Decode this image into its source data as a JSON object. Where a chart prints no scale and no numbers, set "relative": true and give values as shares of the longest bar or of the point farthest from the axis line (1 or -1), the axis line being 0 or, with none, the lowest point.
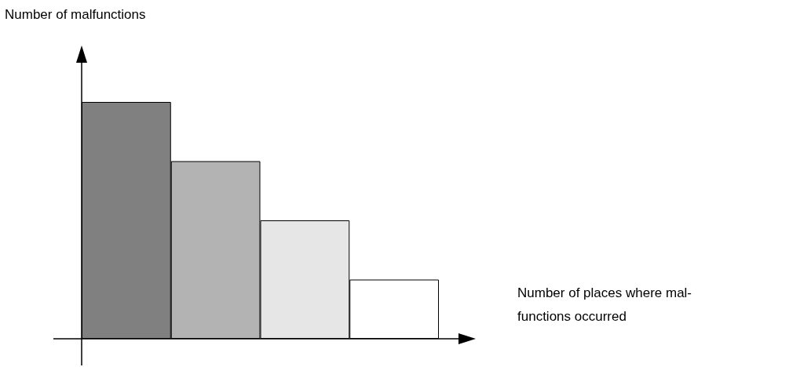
{
  "chart_data": {
    "type": "bar",
    "relative": true,
    "annotations": [
      "Number of malfunctions"
    ],
    "xlabel": "Number of places where mal-\nfunctions occurred",
    "categories": [
      null,
      null,
      null,
      null
    ],
    "values": [
      1,
      0.75,
      0.5,
      0.25
    ],
    "colors": [
      "#808080",
      "#b3b3b3",
      "#e6e6e6",
      "#ffffff"
    ],
    "grid": false
  }
}
